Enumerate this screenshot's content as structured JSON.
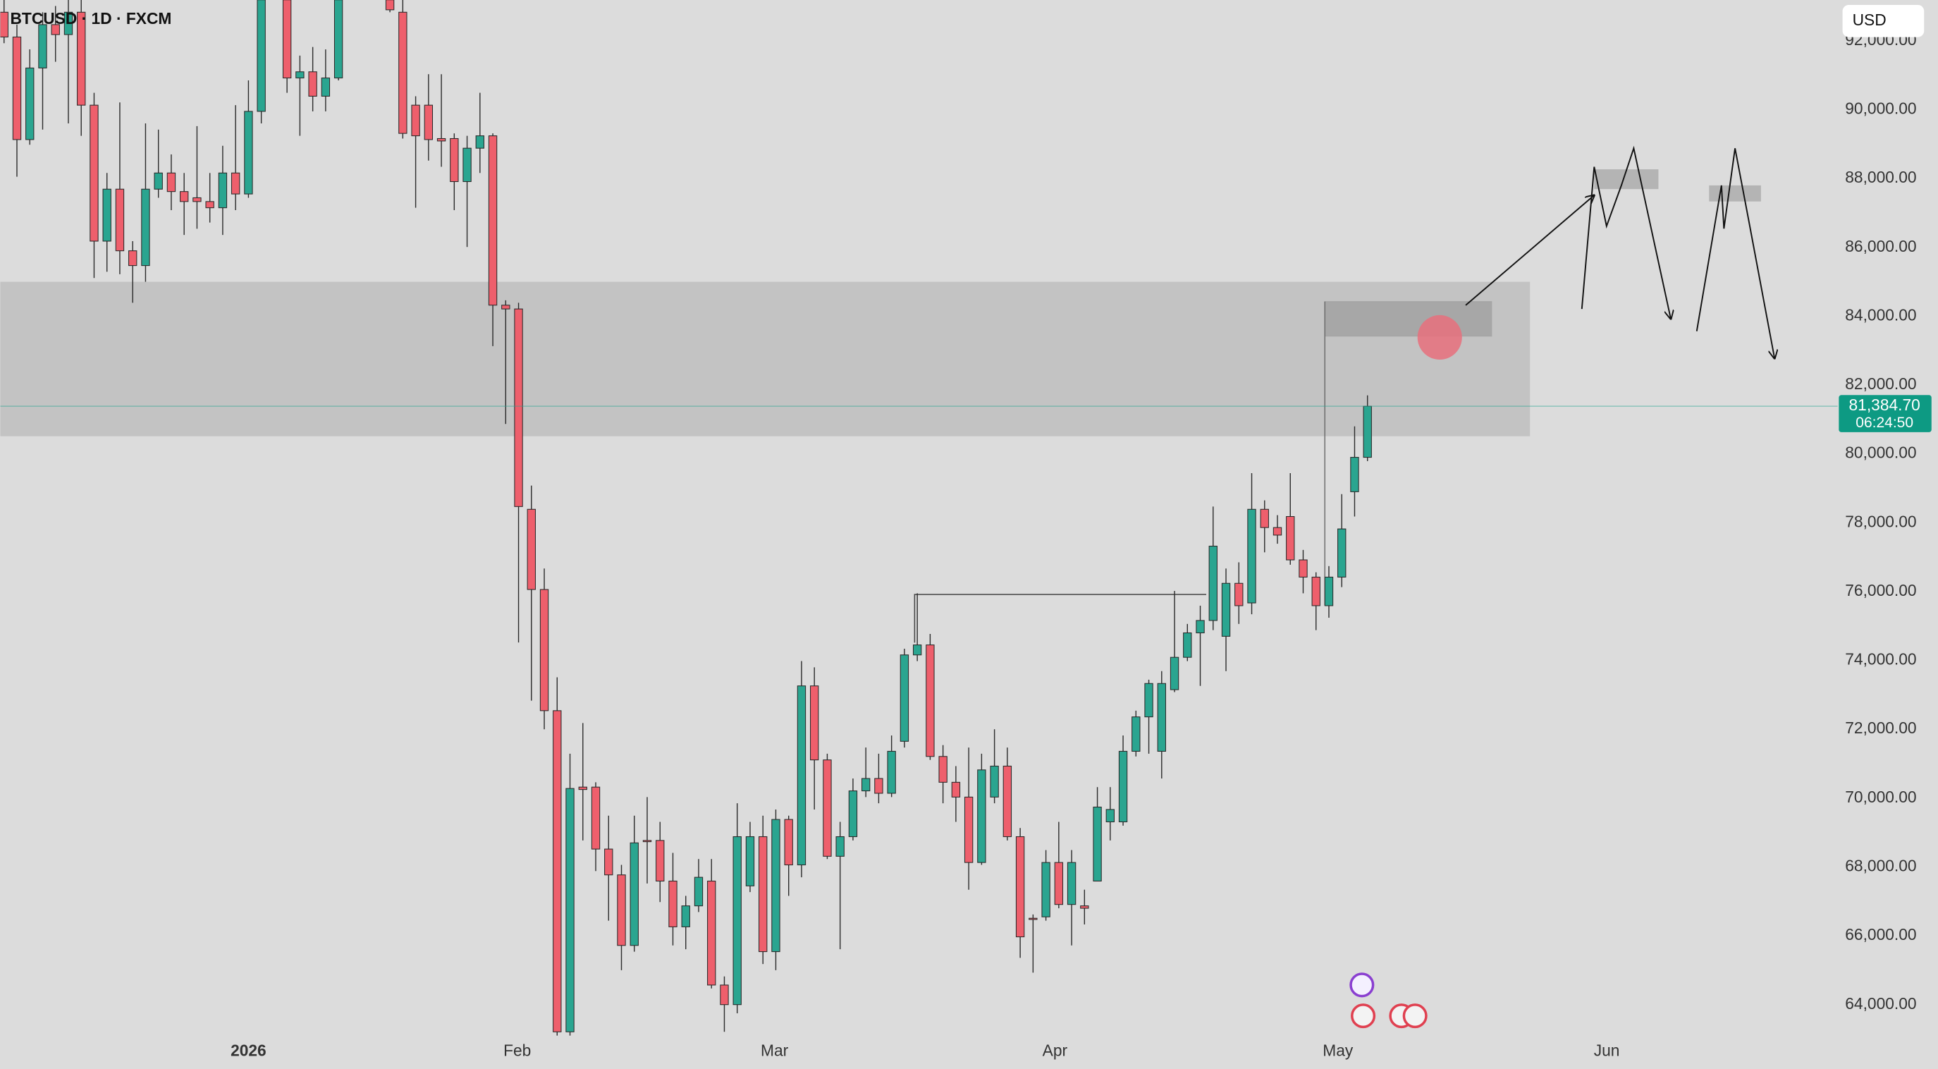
{
  "chart_data": {
    "type": "candlestick",
    "title": "BTCUSD · 1D · FXCM",
    "currency": "USD",
    "up_color": "#2aa590",
    "down_color": "#ee5f6c",
    "categories": [
      null,
      null,
      null,
      null,
      null,
      null,
      null,
      null,
      null,
      null,
      null,
      null,
      null,
      null,
      null,
      null,
      null,
      null,
      null,
      null,
      null,
      null,
      null,
      null,
      null,
      null,
      null,
      null,
      null,
      null,
      null,
      null,
      null,
      null,
      null,
      null,
      null,
      null,
      null,
      null,
      null,
      null,
      null,
      null,
      null,
      null,
      null,
      null,
      null,
      null,
      null,
      null,
      null,
      null,
      null,
      null,
      null,
      null,
      null,
      null,
      null,
      null,
      null,
      null,
      null,
      null,
      null,
      null,
      null,
      null,
      null,
      null,
      null,
      null,
      null,
      null,
      null,
      null,
      null,
      null,
      null,
      null,
      null,
      null,
      null,
      null,
      null,
      null,
      null,
      null,
      null,
      null,
      null,
      null,
      null,
      null,
      null,
      null,
      null,
      null,
      null,
      null,
      null,
      null,
      null,
      null,
      null
    ],
    "open": [
      92830,
      92110,
      89130,
      91210,
      92470,
      92180,
      92830,
      90130,
      86180,
      87690,
      85900,
      85470,
      87690,
      88160,
      87620,
      87440,
      87330,
      87150,
      88160,
      87550,
      89950,
      93500,
      93190,
      90920,
      91100,
      90390,
      90920,
      93400,
      94000,
      93600,
      93190,
      92830,
      90130,
      90130,
      89160,
      89160,
      87910,
      88880,
      89240,
      84320,
      84210,
      78390,
      76060,
      72540,
      63210,
      70320,
      70320,
      68520,
      67770,
      65720,
      68770,
      68770,
      67590,
      66260,
      66870,
      67590,
      64570,
      64000,
      67450,
      68880,
      65540,
      69380,
      68060,
      73260,
      71110,
      68310,
      68880,
      70210,
      70570,
      70140,
      71650,
      74160,
      74450,
      71210,
      70460,
      70030,
      68130,
      70030,
      70930,
      68880,
      66510,
      66550,
      68130,
      66910,
      66870,
      67590,
      69310,
      69310,
      71360,
      72360,
      71360,
      73150,
      74090,
      74800,
      75160,
      74700,
      76240,
      75670,
      78390,
      77860,
      78180,
      76920,
      76420,
      75590,
      76420,
      78900,
      79900
    ],
    "high": [
      93190,
      92470,
      91750,
      92830,
      93010,
      93190,
      93190,
      90490,
      88160,
      90210,
      86180,
      89600,
      89420,
      88700,
      88160,
      89520,
      88160,
      88950,
      90130,
      90850,
      93500,
      94500,
      93400,
      91570,
      91820,
      91750,
      93400,
      94400,
      94500,
      94500,
      93400,
      93190,
      90390,
      91030,
      91030,
      89310,
      89240,
      90490,
      89310,
      84460,
      84390,
      79080,
      76670,
      73510,
      71290,
      72180,
      70460,
      69490,
      68060,
      69490,
      70030,
      69310,
      68410,
      67160,
      68230,
      68230,
      64820,
      69850,
      69310,
      69490,
      69670,
      69490,
      73980,
      73800,
      71290,
      69310,
      70570,
      71470,
      71290,
      71820,
      74340,
      75950,
      74770,
      71540,
      70930,
      71470,
      71290,
      72000,
      71470,
      69130,
      66620,
      68490,
      69310,
      68490,
      67340,
      70320,
      70320,
      71820,
      72540,
      73440,
      73690,
      76020,
      75060,
      75590,
      78470,
      76670,
      76850,
      79440,
      78650,
      78220,
      79440,
      77210,
      76560,
      76740,
      78830,
      80800,
      81700
    ],
    "low": [
      91930,
      88050,
      88980,
      89420,
      91390,
      89600,
      89240,
      85110,
      85290,
      85220,
      84390,
      85000,
      87440,
      87080,
      86360,
      86540,
      86720,
      86360,
      87080,
      87440,
      89600,
      93300,
      90490,
      89240,
      89950,
      89950,
      90850,
      93300,
      93300,
      93300,
      92830,
      89160,
      87150,
      88520,
      88340,
      87080,
      86010,
      88160,
      83130,
      80870,
      74520,
      72830,
      72000,
      62130,
      62130,
      68770,
      67880,
      66440,
      65000,
      65540,
      67520,
      66980,
      65720,
      65610,
      66690,
      64470,
      63210,
      63750,
      67270,
      65180,
      65000,
      67160,
      67700,
      69670,
      68230,
      65610,
      68770,
      70030,
      69850,
      70030,
      71470,
      73980,
      71110,
      69850,
      69310,
      67340,
      68060,
      69850,
      68770,
      65360,
      64930,
      66440,
      66800,
      65720,
      66330,
      67590,
      68770,
      69200,
      71210,
      71290,
      70570,
      73080,
      73980,
      73260,
      74880,
      73690,
      75060,
      75340,
      77140,
      77390,
      76780,
      75950,
      74880,
      75240,
      76130,
      78180,
      79790
    ],
    "close": [
      92110,
      89130,
      91210,
      92470,
      92180,
      92830,
      90130,
      86180,
      87690,
      85900,
      85470,
      87690,
      88160,
      87620,
      87330,
      87330,
      87150,
      88160,
      87550,
      89950,
      93190,
      94000,
      90920,
      91100,
      90390,
      90920,
      93190,
      94000,
      93600,
      94100,
      92900,
      89310,
      89240,
      89130,
      89090,
      87910,
      88880,
      89240,
      84320,
      84210,
      78470,
      76060,
      72540,
      63210,
      70280,
      70250,
      68520,
      67770,
      65720,
      68700,
      68740,
      67590,
      66260,
      66870,
      67700,
      64570,
      64000,
      68880,
      68880,
      65540,
      69380,
      68060,
      73260,
      71110,
      68310,
      68880,
      70210,
      70570,
      70140,
      71360,
      74160,
      74450,
      71210,
      70460,
      70030,
      68130,
      70820,
      70930,
      68880,
      65970,
      66480,
      68130,
      66910,
      68130,
      66800,
      69740,
      69670,
      71360,
      72360,
      73330,
      73330,
      74090,
      74800,
      75160,
      77320,
      76240,
      75590,
      78390,
      77860,
      77640,
      76920,
      76420,
      75590,
      76420,
      77820,
      79900,
      81384.7
    ],
    "current_price": {
      "value": 81384.7,
      "label": "81,384.70"
    },
    "countdown": "06:24:50",
    "ylim": [
      63100,
      93185
    ],
    "yticks": [
      {
        "value": 64000,
        "label": "64,000.00"
      },
      {
        "value": 66000,
        "label": "66,000.00"
      },
      {
        "value": 68000,
        "label": "68,000.00"
      },
      {
        "value": 70000,
        "label": "70,000.00"
      },
      {
        "value": 72000,
        "label": "72,000.00"
      },
      {
        "value": 74000,
        "label": "74,000.00"
      },
      {
        "value": 76000,
        "label": "76,000.00"
      },
      {
        "value": 78000,
        "label": "78,000.00"
      },
      {
        "value": 80000,
        "label": "80,000.00"
      },
      {
        "value": 82000,
        "label": "82,000.00"
      },
      {
        "value": 84000,
        "label": "84,000.00"
      },
      {
        "value": 86000,
        "label": "86,000.00"
      },
      {
        "value": 88000,
        "label": "88,000.00"
      },
      {
        "value": 90000,
        "label": "90,000.00"
      },
      {
        "value": 92000,
        "label": "92,000.00"
      }
    ],
    "xlim": [
      -0.29,
      142.55
    ],
    "xticks": [
      {
        "value": 19,
        "label": "2026"
      },
      {
        "value": 39.9,
        "label": "Feb"
      },
      {
        "value": 59.9,
        "label": "Mar"
      },
      {
        "value": 81.7,
        "label": "Apr"
      },
      {
        "value": 103.7,
        "label": "May"
      },
      {
        "value": 124.6,
        "label": "Jun"
      }
    ],
    "grid": false
  }
}
